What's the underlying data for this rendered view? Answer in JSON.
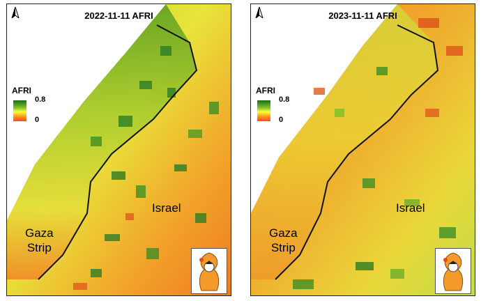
{
  "panels": [
    {
      "title": "2022-11-11 AFRI",
      "legend": {
        "title": "AFRI",
        "max": "0.8",
        "min": "0"
      },
      "labels": {
        "gaza": [
          "Gaza",
          "Strip"
        ],
        "israel": "Israel"
      }
    },
    {
      "title": "2023-11-11 AFRI",
      "legend": {
        "title": "AFRI",
        "max": "0.8",
        "min": "0"
      },
      "labels": {
        "gaza": [
          "Gaza",
          "Strip"
        ],
        "israel": "Israel"
      }
    }
  ],
  "colors": {
    "high": "#1a6e1a",
    "mid_high": "#7fbf2a",
    "mid": "#ffff33",
    "low": "#ff8c1a",
    "lowest": "#ff4d1a",
    "border_line": "#111111"
  },
  "icons": {
    "north_arrow": "north-arrow-icon",
    "logo": "organization-logo"
  }
}
